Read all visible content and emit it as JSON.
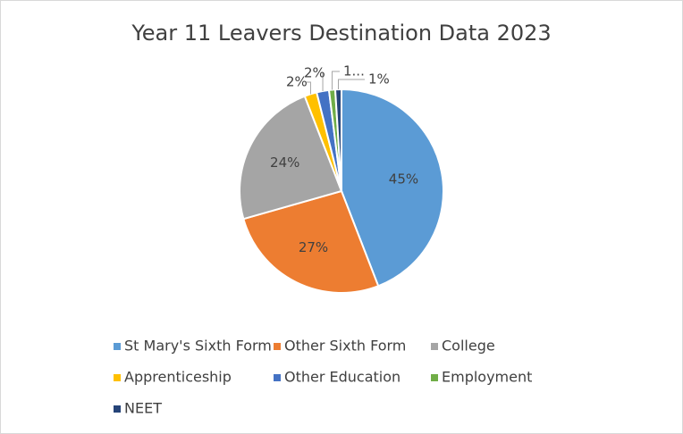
{
  "chart_data": {
    "type": "pie",
    "title": "Year 11 Leavers Destination Data 2023",
    "categories": [
      "St Mary's Sixth Form",
      "Other Sixth Form",
      "College",
      "Apprenticeship",
      "Other Education",
      "Employment",
      "NEET"
    ],
    "values": [
      45,
      27,
      24,
      2,
      2,
      1,
      1
    ],
    "value_labels": [
      "45%",
      "27%",
      "24%",
      "2%",
      "2%",
      "1...",
      "1%"
    ],
    "colors": [
      "#5b9bd5",
      "#ed7d31",
      "#a5a5a5",
      "#ffc000",
      "#4472c4",
      "#70ad47",
      "#264478"
    ],
    "legend": "bottom"
  }
}
